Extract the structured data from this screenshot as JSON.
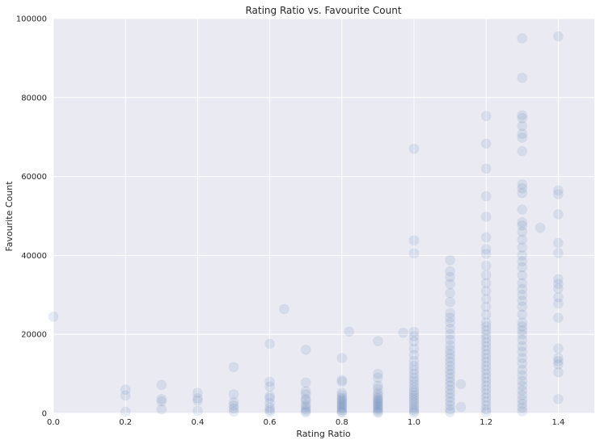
{
  "chart_data": {
    "type": "scatter",
    "title": "Rating Ratio vs. Favourite Count",
    "xlabel": "Rating Ratio",
    "ylabel": "Favourite Count",
    "xlim": [
      0,
      1.5
    ],
    "ylim": [
      0,
      100000
    ],
    "x_ticks": [
      "0.0",
      "0.2",
      "0.4",
      "0.6",
      "0.8",
      "1.0",
      "1.2",
      "1.4"
    ],
    "x_tick_values": [
      0,
      0.2,
      0.4,
      0.6,
      0.8,
      1.0,
      1.2,
      1.4
    ],
    "y_ticks": [
      "0",
      "20000",
      "40000",
      "60000",
      "80000",
      "100000"
    ],
    "y_tick_values": [
      0,
      20000,
      40000,
      60000,
      80000,
      100000
    ],
    "grid": true,
    "colors": {
      "background": "#eaeaf2",
      "point": "#4c72b0",
      "grid": "#ffffff"
    },
    "series": [
      {
        "points": [
          [
            0.0,
            24500
          ],
          [
            0.2,
            6000
          ],
          [
            0.2,
            4500
          ],
          [
            0.2,
            400
          ],
          [
            0.3,
            7200
          ],
          [
            0.3,
            3600
          ],
          [
            0.3,
            3000
          ],
          [
            0.3,
            1000
          ],
          [
            0.4,
            5200
          ],
          [
            0.4,
            3800
          ],
          [
            0.4,
            3200
          ],
          [
            0.4,
            600
          ],
          [
            0.5,
            11700
          ],
          [
            0.5,
            4800
          ],
          [
            0.5,
            2800
          ],
          [
            0.5,
            2000
          ],
          [
            0.5,
            1200
          ],
          [
            0.5,
            400
          ],
          [
            0.6,
            17600
          ],
          [
            0.6,
            8000
          ],
          [
            0.6,
            6800
          ],
          [
            0.6,
            4400
          ],
          [
            0.6,
            3800
          ],
          [
            0.6,
            2600
          ],
          [
            0.6,
            1400
          ],
          [
            0.6,
            800
          ],
          [
            0.6,
            300
          ],
          [
            0.64,
            26400
          ],
          [
            0.7,
            16100
          ],
          [
            0.7,
            7800
          ],
          [
            0.7,
            5600
          ],
          [
            0.7,
            4800
          ],
          [
            0.7,
            3600
          ],
          [
            0.7,
            3200
          ],
          [
            0.7,
            2200
          ],
          [
            0.7,
            1600
          ],
          [
            0.7,
            1000
          ],
          [
            0.7,
            600
          ],
          [
            0.7,
            200
          ],
          [
            0.8,
            14000
          ],
          [
            0.8,
            8400
          ],
          [
            0.8,
            8000
          ],
          [
            0.8,
            5200
          ],
          [
            0.8,
            4600
          ],
          [
            0.8,
            4000
          ],
          [
            0.8,
            3600
          ],
          [
            0.8,
            3200
          ],
          [
            0.8,
            2800
          ],
          [
            0.8,
            2400
          ],
          [
            0.8,
            2000
          ],
          [
            0.8,
            1600
          ],
          [
            0.8,
            1200
          ],
          [
            0.8,
            800
          ],
          [
            0.8,
            400
          ],
          [
            0.8,
            100
          ],
          [
            0.82,
            20700
          ],
          [
            0.9,
            18300
          ],
          [
            0.9,
            10000
          ],
          [
            0.9,
            9000
          ],
          [
            0.9,
            7000
          ],
          [
            0.9,
            6200
          ],
          [
            0.9,
            5200
          ],
          [
            0.9,
            4600
          ],
          [
            0.9,
            4000
          ],
          [
            0.9,
            3600
          ],
          [
            0.9,
            3200
          ],
          [
            0.9,
            2800
          ],
          [
            0.9,
            2400
          ],
          [
            0.9,
            2000
          ],
          [
            0.9,
            1600
          ],
          [
            0.9,
            1200
          ],
          [
            0.9,
            800
          ],
          [
            0.9,
            400
          ],
          [
            0.9,
            100
          ],
          [
            0.97,
            20400
          ],
          [
            1.0,
            67000
          ],
          [
            1.0,
            43800
          ],
          [
            1.0,
            40500
          ],
          [
            1.0,
            20600
          ],
          [
            1.0,
            19500
          ],
          [
            1.0,
            18200
          ],
          [
            1.0,
            16400
          ],
          [
            1.0,
            14800
          ],
          [
            1.0,
            13200
          ],
          [
            1.0,
            12000
          ],
          [
            1.0,
            11000
          ],
          [
            1.0,
            10000
          ],
          [
            1.0,
            9000
          ],
          [
            1.0,
            8200
          ],
          [
            1.0,
            7400
          ],
          [
            1.0,
            6600
          ],
          [
            1.0,
            5800
          ],
          [
            1.0,
            5200
          ],
          [
            1.0,
            4600
          ],
          [
            1.0,
            4000
          ],
          [
            1.0,
            3400
          ],
          [
            1.0,
            2800
          ],
          [
            1.0,
            2200
          ],
          [
            1.0,
            1600
          ],
          [
            1.0,
            1000
          ],
          [
            1.0,
            500
          ],
          [
            1.0,
            100
          ],
          [
            1.1,
            38800
          ],
          [
            1.1,
            36000
          ],
          [
            1.1,
            34500
          ],
          [
            1.1,
            32800
          ],
          [
            1.1,
            30500
          ],
          [
            1.1,
            28200
          ],
          [
            1.1,
            25400
          ],
          [
            1.1,
            24200
          ],
          [
            1.1,
            23000
          ],
          [
            1.1,
            21400
          ],
          [
            1.1,
            20000
          ],
          [
            1.1,
            18600
          ],
          [
            1.1,
            17200
          ],
          [
            1.1,
            16000
          ],
          [
            1.1,
            15000
          ],
          [
            1.1,
            14000
          ],
          [
            1.1,
            13000
          ],
          [
            1.1,
            12000
          ],
          [
            1.1,
            11000
          ],
          [
            1.1,
            10000
          ],
          [
            1.1,
            9000
          ],
          [
            1.1,
            8000
          ],
          [
            1.1,
            7000
          ],
          [
            1.1,
            6000
          ],
          [
            1.1,
            5000
          ],
          [
            1.1,
            4000
          ],
          [
            1.1,
            3000
          ],
          [
            1.1,
            2000
          ],
          [
            1.1,
            1000
          ],
          [
            1.1,
            300
          ],
          [
            1.13,
            7400
          ],
          [
            1.13,
            1600
          ],
          [
            1.2,
            75300
          ],
          [
            1.2,
            68300
          ],
          [
            1.2,
            62000
          ],
          [
            1.2,
            55000
          ],
          [
            1.2,
            49800
          ],
          [
            1.2,
            44600
          ],
          [
            1.2,
            41600
          ],
          [
            1.2,
            40400
          ],
          [
            1.2,
            37400
          ],
          [
            1.2,
            35000
          ],
          [
            1.2,
            33000
          ],
          [
            1.2,
            31000
          ],
          [
            1.2,
            29000
          ],
          [
            1.2,
            27000
          ],
          [
            1.2,
            25000
          ],
          [
            1.2,
            23000
          ],
          [
            1.2,
            22000
          ],
          [
            1.2,
            21000
          ],
          [
            1.2,
            20000
          ],
          [
            1.2,
            19000
          ],
          [
            1.2,
            18000
          ],
          [
            1.2,
            17000
          ],
          [
            1.2,
            16000
          ],
          [
            1.2,
            15000
          ],
          [
            1.2,
            14000
          ],
          [
            1.2,
            13000
          ],
          [
            1.2,
            12000
          ],
          [
            1.2,
            11000
          ],
          [
            1.2,
            10000
          ],
          [
            1.2,
            9000
          ],
          [
            1.2,
            8000
          ],
          [
            1.2,
            7000
          ],
          [
            1.2,
            6000
          ],
          [
            1.2,
            5000
          ],
          [
            1.2,
            4000
          ],
          [
            1.2,
            3000
          ],
          [
            1.2,
            2000
          ],
          [
            1.2,
            1000
          ],
          [
            1.2,
            300
          ],
          [
            1.3,
            95000
          ],
          [
            1.3,
            85000
          ],
          [
            1.3,
            75500
          ],
          [
            1.3,
            74800
          ],
          [
            1.3,
            72800
          ],
          [
            1.3,
            70800
          ],
          [
            1.3,
            69800
          ],
          [
            1.3,
            66400
          ],
          [
            1.3,
            58000
          ],
          [
            1.3,
            57000
          ],
          [
            1.3,
            55800
          ],
          [
            1.3,
            51600
          ],
          [
            1.3,
            48400
          ],
          [
            1.3,
            47600
          ],
          [
            1.3,
            46000
          ],
          [
            1.3,
            44000
          ],
          [
            1.3,
            42000
          ],
          [
            1.3,
            40000
          ],
          [
            1.3,
            38500
          ],
          [
            1.3,
            37000
          ],
          [
            1.3,
            35000
          ],
          [
            1.3,
            33000
          ],
          [
            1.3,
            31500
          ],
          [
            1.3,
            30000
          ],
          [
            1.3,
            28500
          ],
          [
            1.3,
            27000
          ],
          [
            1.3,
            25000
          ],
          [
            1.3,
            23000
          ],
          [
            1.3,
            22000
          ],
          [
            1.3,
            21000
          ],
          [
            1.3,
            20000
          ],
          [
            1.3,
            18600
          ],
          [
            1.3,
            17000
          ],
          [
            1.3,
            15600
          ],
          [
            1.3,
            14000
          ],
          [
            1.3,
            12600
          ],
          [
            1.3,
            11000
          ],
          [
            1.3,
            9600
          ],
          [
            1.3,
            8200
          ],
          [
            1.3,
            7000
          ],
          [
            1.3,
            5800
          ],
          [
            1.3,
            4600
          ],
          [
            1.3,
            3400
          ],
          [
            1.3,
            2400
          ],
          [
            1.3,
            1400
          ],
          [
            1.3,
            500
          ],
          [
            1.35,
            47000
          ],
          [
            1.4,
            95500
          ],
          [
            1.4,
            56500
          ],
          [
            1.4,
            55500
          ],
          [
            1.4,
            50400
          ],
          [
            1.4,
            43200
          ],
          [
            1.4,
            40600
          ],
          [
            1.4,
            34000
          ],
          [
            1.4,
            32800
          ],
          [
            1.4,
            31600
          ],
          [
            1.4,
            29400
          ],
          [
            1.4,
            27800
          ],
          [
            1.4,
            24200
          ],
          [
            1.4,
            16400
          ],
          [
            1.4,
            14000
          ],
          [
            1.4,
            13200
          ],
          [
            1.4,
            12400
          ],
          [
            1.4,
            10400
          ],
          [
            1.4,
            3600
          ]
        ]
      }
    ]
  }
}
